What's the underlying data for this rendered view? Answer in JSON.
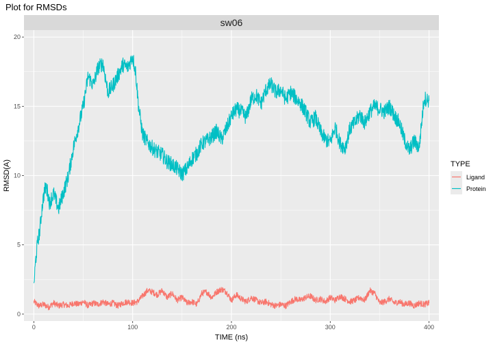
{
  "chart_data": {
    "type": "line",
    "title": "Plot for RMSDs",
    "facet_label": "sw06",
    "xlabel": "TIME (ns)",
    "ylabel": "RMSD(A)",
    "xlim": [
      -10,
      410
    ],
    "ylim": [
      -0.5,
      20.5
    ],
    "x_ticks": [
      0,
      100,
      200,
      300,
      400
    ],
    "y_ticks": [
      0,
      5,
      10,
      15,
      20
    ],
    "grid": true,
    "legend": {
      "title": "TYPE",
      "position": "right",
      "entries": [
        "Ligand",
        "Protein"
      ]
    },
    "colors": {
      "Ligand": "#F8766D",
      "Protein": "#00BFC4"
    },
    "series": [
      {
        "name": "Protein",
        "x": [
          0,
          2,
          4,
          6,
          8,
          10,
          12,
          14,
          16,
          18,
          20,
          25,
          30,
          35,
          40,
          45,
          50,
          55,
          60,
          65,
          70,
          75,
          80,
          85,
          90,
          95,
          100,
          103,
          106,
          110,
          115,
          120,
          125,
          130,
          135,
          140,
          145,
          150,
          155,
          160,
          165,
          170,
          175,
          180,
          185,
          190,
          195,
          200,
          205,
          210,
          215,
          220,
          225,
          230,
          235,
          240,
          245,
          250,
          255,
          260,
          265,
          270,
          275,
          280,
          285,
          290,
          295,
          300,
          305,
          310,
          315,
          320,
          325,
          330,
          335,
          340,
          345,
          350,
          355,
          360,
          365,
          370,
          375,
          380,
          385,
          390,
          395,
          400
        ],
        "y": [
          2.1,
          4.0,
          5.3,
          6.0,
          7.5,
          8.6,
          9.2,
          8.8,
          8.0,
          8.4,
          8.7,
          7.6,
          8.8,
          10.0,
          12.0,
          13.5,
          15.0,
          17.2,
          16.5,
          17.8,
          18.1,
          16.0,
          16.5,
          17.2,
          18.0,
          17.8,
          18.6,
          17.5,
          15.0,
          13.0,
          12.4,
          12.0,
          11.7,
          11.5,
          11.0,
          10.8,
          10.5,
          10.1,
          10.5,
          11.2,
          11.6,
          12.3,
          12.5,
          12.8,
          13.2,
          12.6,
          13.4,
          14.3,
          14.8,
          14.6,
          14.2,
          15.5,
          15.8,
          15.2,
          16.2,
          16.6,
          16.0,
          16.2,
          15.5,
          16.0,
          15.6,
          15.2,
          14.6,
          13.8,
          14.2,
          13.2,
          12.6,
          12.4,
          13.5,
          12.3,
          12.0,
          13.4,
          13.8,
          14.4,
          13.8,
          14.6,
          15.0,
          14.8,
          14.6,
          15.0,
          14.3,
          13.8,
          12.6,
          11.8,
          12.5,
          12.0,
          15.6,
          15.4
        ]
      },
      {
        "name": "Ligand",
        "x": [
          0,
          5,
          10,
          15,
          20,
          25,
          30,
          35,
          40,
          45,
          50,
          55,
          60,
          65,
          70,
          75,
          80,
          85,
          90,
          95,
          100,
          105,
          110,
          115,
          120,
          125,
          130,
          135,
          140,
          145,
          150,
          155,
          160,
          165,
          170,
          175,
          180,
          185,
          190,
          195,
          200,
          205,
          210,
          215,
          220,
          225,
          230,
          235,
          240,
          245,
          250,
          255,
          260,
          265,
          270,
          275,
          280,
          285,
          290,
          295,
          300,
          305,
          310,
          315,
          320,
          325,
          330,
          335,
          340,
          345,
          350,
          355,
          360,
          365,
          370,
          375,
          380,
          385,
          390,
          395,
          400
        ],
        "y": [
          0.9,
          0.6,
          0.7,
          0.5,
          0.8,
          0.6,
          0.7,
          0.6,
          0.8,
          0.7,
          0.9,
          0.6,
          0.8,
          0.7,
          0.9,
          0.7,
          0.8,
          0.6,
          0.8,
          0.9,
          0.8,
          0.9,
          1.3,
          1.7,
          1.6,
          1.4,
          1.7,
          1.2,
          1.5,
          1.0,
          1.2,
          0.8,
          0.9,
          0.7,
          1.5,
          1.6,
          1.2,
          1.6,
          1.8,
          1.6,
          1.0,
          1.4,
          1.1,
          0.9,
          1.2,
          1.0,
          0.8,
          0.9,
          0.7,
          0.6,
          0.7,
          0.6,
          0.9,
          1.1,
          1.0,
          1.2,
          1.3,
          1.0,
          1.1,
          0.9,
          1.2,
          1.0,
          1.3,
          1.1,
          0.9,
          1.0,
          1.2,
          1.0,
          1.7,
          1.5,
          0.8,
          0.9,
          1.1,
          0.8,
          0.9,
          0.7,
          0.8,
          0.6,
          0.8,
          0.7,
          0.8
        ]
      }
    ]
  }
}
